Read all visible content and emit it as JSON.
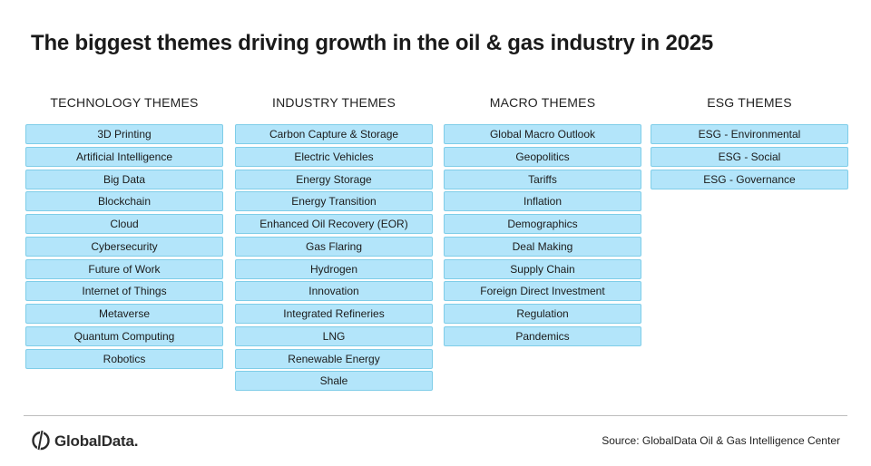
{
  "title": "The biggest themes driving growth in the oil & gas industry in 2025",
  "columns": [
    {
      "heading": "TECHNOLOGY THEMES",
      "items": [
        "3D Printing",
        "Artificial Intelligence",
        "Big Data",
        "Blockchain",
        "Cloud",
        "Cybersecurity",
        "Future of Work",
        "Internet of Things",
        "Metaverse",
        "Quantum Computing",
        "Robotics"
      ]
    },
    {
      "heading": "INDUSTRY THEMES",
      "items": [
        "Carbon Capture & Storage",
        "Electric Vehicles",
        "Energy Storage",
        "Energy Transition",
        "Enhanced Oil Recovery (EOR)",
        "Gas Flaring",
        "Hydrogen",
        "Innovation",
        "Integrated Refineries",
        "LNG",
        "Renewable Energy",
        "Shale"
      ]
    },
    {
      "heading": "MACRO THEMES",
      "items": [
        "Global Macro Outlook",
        "Geopolitics",
        "Tariffs",
        "Inflation",
        "Demographics",
        "Deal Making",
        "Supply Chain",
        "Foreign Direct Investment",
        "Regulation",
        "Pandemics"
      ]
    },
    {
      "heading": "ESG THEMES",
      "items": [
        "ESG - Environmental",
        "ESG - Social",
        "ESG - Governance"
      ]
    }
  ],
  "footer": {
    "logo_text": "GlobalData.",
    "source": "Source: GlobalData Oil & Gas Intelligence Center"
  },
  "colors": {
    "box_fill": "#b3e5fa",
    "box_border": "#7fcde8"
  }
}
